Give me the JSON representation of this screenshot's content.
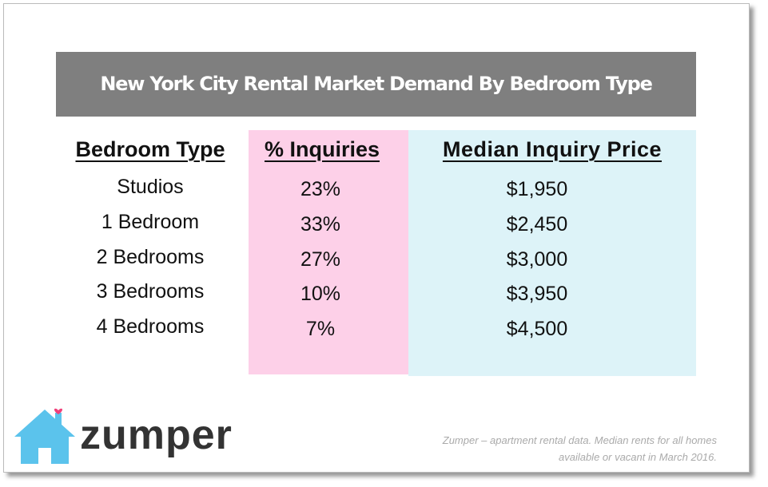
{
  "title": "New York City Rental Market Demand By Bedroom Type",
  "table": {
    "headers": [
      "Bedroom Type",
      "% Inquiries",
      "Median Inquiry Price"
    ],
    "rows": [
      [
        "Studios",
        "23%",
        "$1,950"
      ],
      [
        "1 Bedroom",
        "33%",
        "$2,450"
      ],
      [
        "2 Bedrooms",
        "27%",
        "$3,000"
      ],
      [
        "3 Bedrooms",
        "10%",
        "$3,950"
      ],
      [
        "4 Bedrooms",
        "7%",
        "$4,500"
      ]
    ]
  },
  "logo": "zumper",
  "footnote": [
    "Zumper – apartment rental data. Median rents for all homes",
    "available or vacant in March 2016."
  ]
}
